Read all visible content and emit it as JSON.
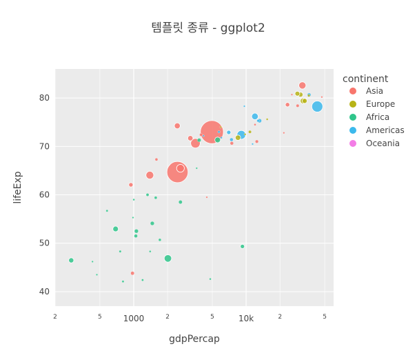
{
  "chart_data": {
    "type": "scatter",
    "title": "템플릿 종류 - ggplot2",
    "xlabel": "gdpPercap",
    "ylabel": "lifeExp",
    "x_scale": "log",
    "xlim": [
      200,
      60000
    ],
    "ylim": [
      37,
      86
    ],
    "x_ticks": [
      {
        "value": 200,
        "label": "2",
        "major": false
      },
      {
        "value": 500,
        "label": "5",
        "major": false
      },
      {
        "value": 1000,
        "label": "1000",
        "major": true
      },
      {
        "value": 2000,
        "label": "2",
        "major": false
      },
      {
        "value": 5000,
        "label": "5",
        "major": false
      },
      {
        "value": 10000,
        "label": "10k",
        "major": true
      },
      {
        "value": 20000,
        "label": "2",
        "major": false
      },
      {
        "value": 50000,
        "label": "5",
        "major": false
      }
    ],
    "y_ticks": [
      40,
      50,
      60,
      70,
      80
    ],
    "grid": true,
    "legend": {
      "title": "continent",
      "placement": "right"
    },
    "series": [
      {
        "name": "Asia",
        "color": "#F8766D",
        "points": [
          {
            "x": 4959,
            "y": 72.96,
            "size": 1319
          },
          {
            "x": 2452,
            "y": 64.7,
            "size": 1110
          },
          {
            "x": 3541,
            "y": 70.65,
            "size": 223
          },
          {
            "x": 2605,
            "y": 65.48,
            "size": 150
          },
          {
            "x": 1391,
            "y": 64.06,
            "size": 150
          },
          {
            "x": 31656,
            "y": 82.6,
            "size": 127
          },
          {
            "x": 2441,
            "y": 74.25,
            "size": 85
          },
          {
            "x": 3190,
            "y": 71.69,
            "size": 69
          },
          {
            "x": 944,
            "y": 62.07,
            "size": 47
          },
          {
            "x": 12452,
            "y": 71.0,
            "size": 25
          },
          {
            "x": 7458,
            "y": 70.65,
            "size": 28
          },
          {
            "x": 23348,
            "y": 78.62,
            "size": 49
          },
          {
            "x": 28718,
            "y": 78.4,
            "size": 23
          },
          {
            "x": 3970,
            "y": 72.4,
            "size": 23
          },
          {
            "x": 1593,
            "y": 67.3,
            "size": 19
          },
          {
            "x": 4471,
            "y": 59.5,
            "size": 5
          },
          {
            "x": 975,
            "y": 43.8,
            "size": 32
          },
          {
            "x": 12000,
            "y": 74.5,
            "size": 11
          },
          {
            "x": 21655,
            "y": 72.8,
            "size": 3
          },
          {
            "x": 47143,
            "y": 80.2,
            "size": 5
          },
          {
            "x": 25523,
            "y": 80.7,
            "size": 7
          }
        ]
      },
      {
        "name": "Europe",
        "color": "#B7B317",
        "points": [
          {
            "x": 32170,
            "y": 79.4,
            "size": 82
          },
          {
            "x": 30470,
            "y": 80.7,
            "size": 61
          },
          {
            "x": 33203,
            "y": 79.4,
            "size": 60
          },
          {
            "x": 28570,
            "y": 80.9,
            "size": 58
          },
          {
            "x": 8460,
            "y": 71.8,
            "size": 71
          },
          {
            "x": 15390,
            "y": 75.6,
            "size": 10
          },
          {
            "x": 36126,
            "y": 80.5,
            "size": 16
          },
          {
            "x": 9787,
            "y": 72.5,
            "size": 10
          },
          {
            "x": 10808,
            "y": 73.0,
            "size": 22
          },
          {
            "x": 5937,
            "y": 74.0,
            "size": 4
          }
        ]
      },
      {
        "name": "Africa",
        "color": "#2FC58B",
        "points": [
          {
            "x": 2014,
            "y": 46.86,
            "size": 135
          },
          {
            "x": 690,
            "y": 52.95,
            "size": 76
          },
          {
            "x": 278,
            "y": 46.46,
            "size": 64
          },
          {
            "x": 5581,
            "y": 71.34,
            "size": 80
          },
          {
            "x": 9270,
            "y": 49.34,
            "size": 44
          },
          {
            "x": 1056,
            "y": 52.5,
            "size": 38
          },
          {
            "x": 1463,
            "y": 54.1,
            "size": 38
          },
          {
            "x": 2605,
            "y": 58.5,
            "size": 33
          },
          {
            "x": 1044,
            "y": 51.5,
            "size": 29
          },
          {
            "x": 4797,
            "y": 42.6,
            "size": 10
          },
          {
            "x": 1327,
            "y": 60.0,
            "size": 21
          },
          {
            "x": 1569,
            "y": 59.4,
            "size": 19
          },
          {
            "x": 803,
            "y": 42.1,
            "size": 12
          },
          {
            "x": 3820,
            "y": 71.3,
            "size": 34
          },
          {
            "x": 579,
            "y": 56.7,
            "size": 12
          },
          {
            "x": 1708,
            "y": 50.7,
            "size": 18
          },
          {
            "x": 1002,
            "y": 59.0,
            "size": 10
          },
          {
            "x": 758,
            "y": 48.3,
            "size": 13
          },
          {
            "x": 1200,
            "y": 42.4,
            "size": 12
          },
          {
            "x": 430,
            "y": 46.2,
            "size": 6
          },
          {
            "x": 470,
            "y": 43.5,
            "size": 5
          },
          {
            "x": 3632,
            "y": 65.5,
            "size": 5
          },
          {
            "x": 1400,
            "y": 48.3,
            "size": 10
          },
          {
            "x": 985,
            "y": 55.3,
            "size": 8
          }
        ]
      },
      {
        "name": "Americas",
        "color": "#3CB9EC",
        "points": [
          {
            "x": 42952,
            "y": 78.24,
            "size": 301
          },
          {
            "x": 9066,
            "y": 72.39,
            "size": 190
          },
          {
            "x": 11977,
            "y": 76.2,
            "size": 108
          },
          {
            "x": 36319,
            "y": 80.65,
            "size": 33
          },
          {
            "x": 7007,
            "y": 72.9,
            "size": 44
          },
          {
            "x": 13172,
            "y": 75.3,
            "size": 40
          },
          {
            "x": 7409,
            "y": 71.4,
            "size": 28
          },
          {
            "x": 5728,
            "y": 73.0,
            "size": 14
          },
          {
            "x": 12779,
            "y": 75.3,
            "size": 16
          },
          {
            "x": 9645,
            "y": 78.3,
            "size": 4
          },
          {
            "x": 6025,
            "y": 71.8,
            "size": 9
          },
          {
            "x": 4173,
            "y": 72.2,
            "size": 4
          },
          {
            "x": 11416,
            "y": 70.5,
            "size": 8
          }
        ]
      },
      {
        "name": "Oceania",
        "color": "#F37DE6",
        "points": []
      }
    ]
  }
}
